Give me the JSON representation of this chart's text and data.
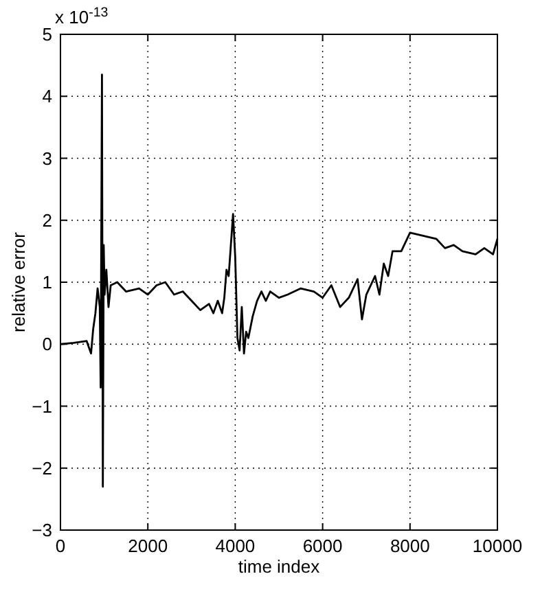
{
  "chart_data": {
    "type": "line",
    "xlabel": "time index",
    "ylabel": "relative error",
    "annotations": [
      "x 10$^{-13}$"
    ],
    "xlim": [
      0,
      10000
    ],
    "xticks": [
      0,
      2000,
      4000,
      6000,
      8000,
      10000
    ],
    "ylim": [
      -3,
      5
    ],
    "yticks": [
      -3,
      -2,
      -1,
      0,
      1,
      2,
      3,
      4,
      5
    ],
    "grid": true,
    "series": [
      {
        "color": "#000000",
        "x": [
          0,
          300,
          600,
          700,
          750,
          800,
          850,
          900,
          920,
          950,
          970,
          990,
          1010,
          1050,
          1100,
          1150,
          1300,
          1500,
          1800,
          2000,
          2200,
          2400,
          2600,
          2800,
          3000,
          3200,
          3400,
          3500,
          3600,
          3700,
          3750,
          3800,
          3850,
          3900,
          3950,
          4000,
          4050,
          4100,
          4150,
          4200,
          4250,
          4300,
          4400,
          4500,
          4600,
          4700,
          4800,
          5000,
          5200,
          5500,
          5800,
          6000,
          6200,
          6400,
          6600,
          6800,
          6900,
          7000,
          7200,
          7300,
          7400,
          7500,
          7600,
          7800,
          8000,
          8300,
          8600,
          8800,
          9000,
          9200,
          9500,
          9700,
          9900,
          10000
        ],
        "values": [
          0,
          0.02,
          0.05,
          -0.15,
          0.25,
          0.5,
          0.9,
          0.6,
          -0.7,
          4.35,
          -2.3,
          1.6,
          0.8,
          1.2,
          0.6,
          0.95,
          1.0,
          0.85,
          0.9,
          0.8,
          0.95,
          1.0,
          0.8,
          0.85,
          0.7,
          0.55,
          0.65,
          0.5,
          0.7,
          0.5,
          0.75,
          1.2,
          1.1,
          1.6,
          2.1,
          1.4,
          0.1,
          -0.1,
          0.6,
          -0.15,
          0.2,
          0.1,
          0.45,
          0.7,
          0.85,
          0.7,
          0.85,
          0.75,
          0.8,
          0.9,
          0.85,
          0.75,
          0.95,
          0.6,
          0.75,
          1.05,
          0.4,
          0.8,
          1.1,
          0.8,
          1.3,
          1.1,
          1.5,
          1.5,
          1.8,
          1.75,
          1.7,
          1.55,
          1.6,
          1.5,
          1.45,
          1.55,
          1.45,
          1.7
        ]
      }
    ]
  }
}
